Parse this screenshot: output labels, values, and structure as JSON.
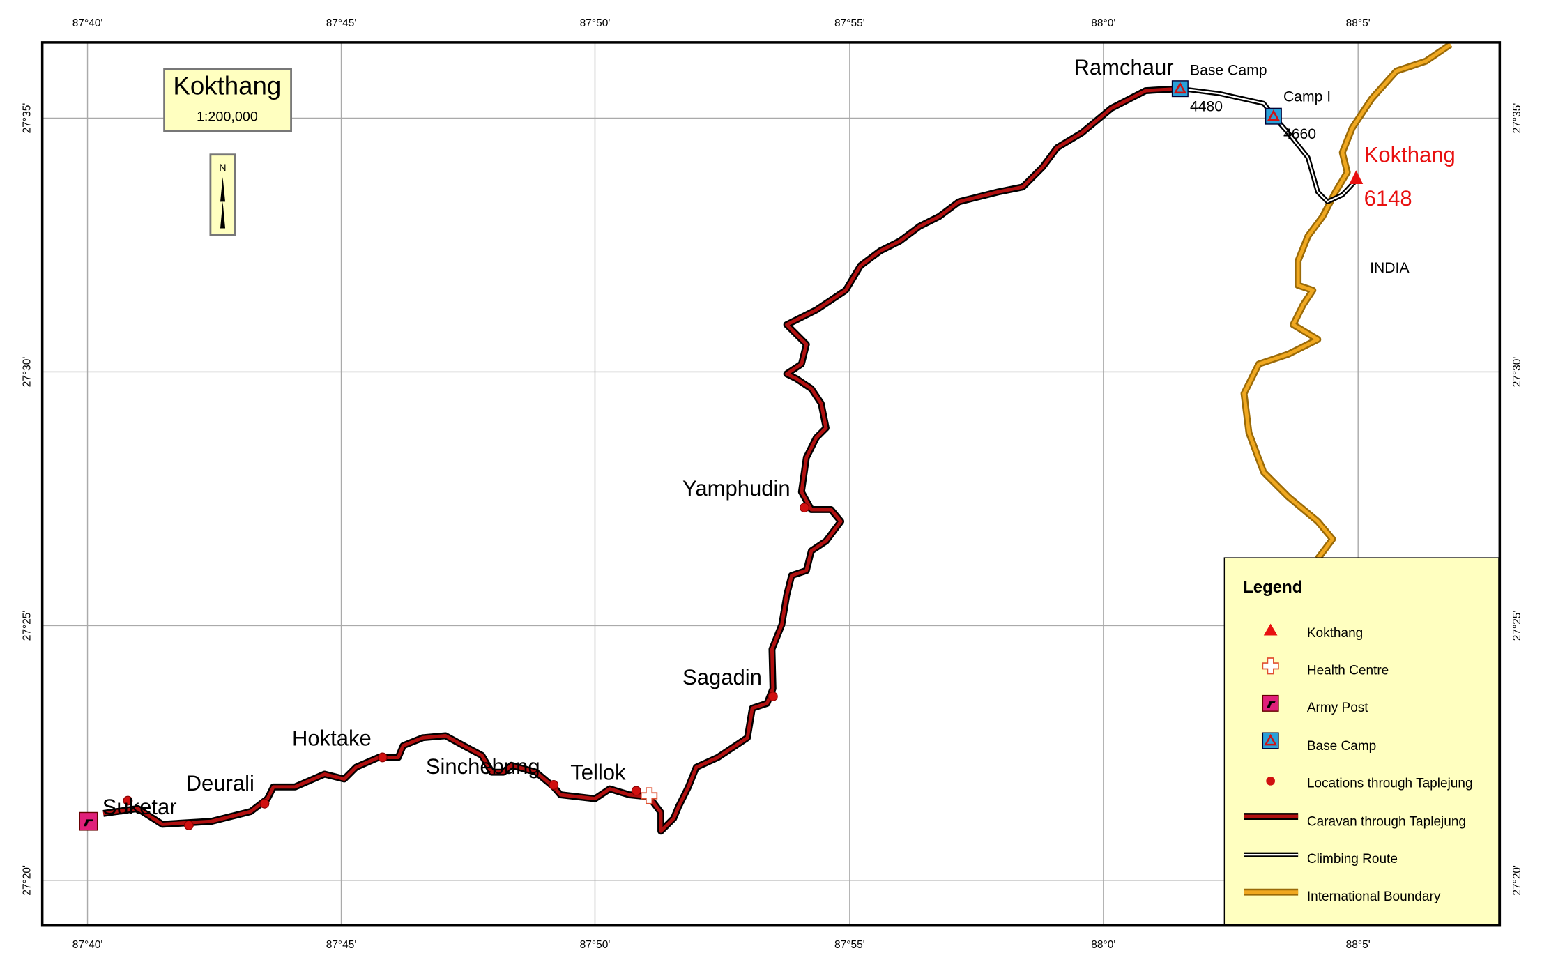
{
  "title": "Kokthang",
  "scale": "1:200,000",
  "north": "N",
  "longitudes": [
    "87°40'",
    "87°45'",
    "87°50'",
    "87°55'",
    "88°0'",
    "88°5'"
  ],
  "latitudes": [
    "27°35'",
    "27°30'",
    "27°25'",
    "27°20'"
  ],
  "places": [
    "Ramchaur",
    "Yamphudin",
    "Sagadin",
    "Tellok",
    "Sinchebung",
    "Hoktake",
    "Deurali",
    "Suketar"
  ],
  "camps": [
    {
      "name": "Base Camp",
      "elevation": 4480
    },
    {
      "name": "Camp I",
      "elevation": 4660
    }
  ],
  "peak": {
    "name": "Kokthang",
    "elevation": 6148
  },
  "country": "INDIA",
  "legend": {
    "title": "Legend",
    "items": [
      "Kokthang",
      "Health Centre",
      "Army Post",
      "Base Camp",
      "Locations through Taplejung",
      "Caravan through Taplejung",
      "Climbing Route",
      "International Boundary"
    ]
  }
}
